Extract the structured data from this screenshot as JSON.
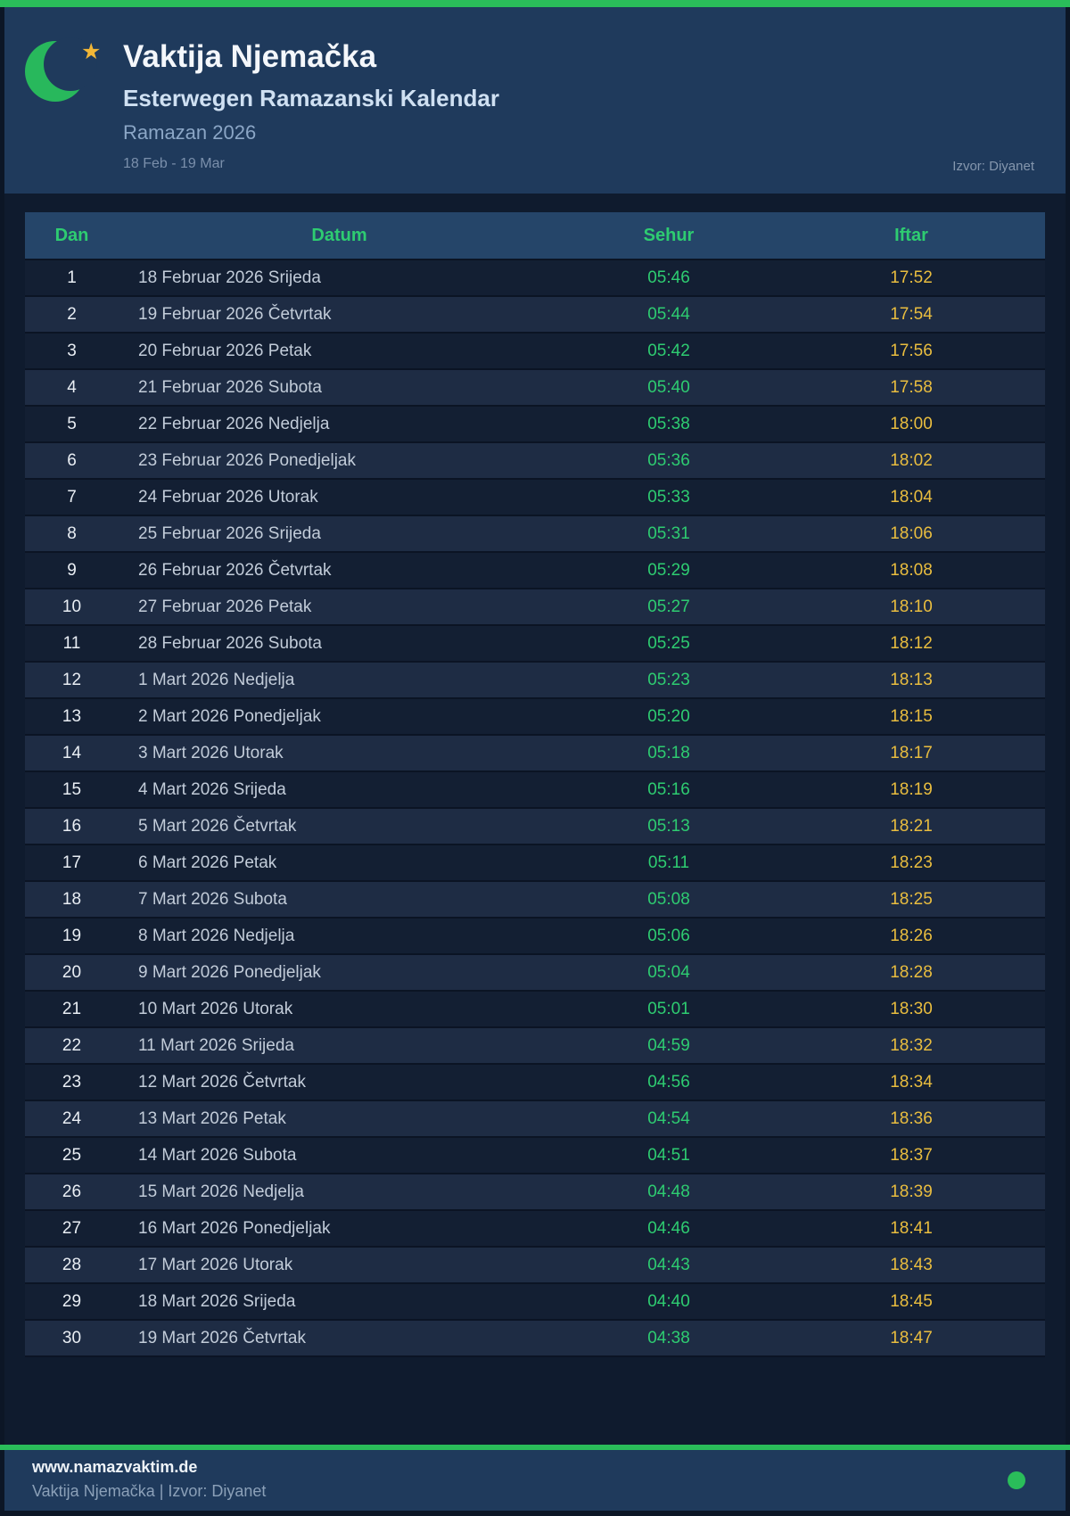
{
  "header": {
    "title": "Vaktija Njemačka",
    "subtitle": "Esterwegen Ramazanski Kalendar",
    "season": "Ramazan 2026",
    "date_range": "18 Feb - 19 Mar",
    "source": "Izvor: Diyanet",
    "star_glyph": "★"
  },
  "colors": {
    "accent_green": "#2abd5a",
    "header_bg": "#1f3a5c",
    "body_bg": "#0f1b2e",
    "table_header_bg": "#254569",
    "sehur_green": "#2ecc71",
    "iftar_amber": "#e9bd3f",
    "moon_green": "#28b85c",
    "star_gold": "#f2b636"
  },
  "table": {
    "columns": [
      "Dan",
      "Datum",
      "Sehur",
      "Iftar"
    ],
    "rows": [
      {
        "dan": "1",
        "datum": "18 Februar 2026 Srijeda",
        "sehur": "05:46",
        "iftar": "17:52"
      },
      {
        "dan": "2",
        "datum": "19 Februar 2026 Četvrtak",
        "sehur": "05:44",
        "iftar": "17:54"
      },
      {
        "dan": "3",
        "datum": "20 Februar 2026 Petak",
        "sehur": "05:42",
        "iftar": "17:56"
      },
      {
        "dan": "4",
        "datum": "21 Februar 2026 Subota",
        "sehur": "05:40",
        "iftar": "17:58"
      },
      {
        "dan": "5",
        "datum": "22 Februar 2026 Nedjelja",
        "sehur": "05:38",
        "iftar": "18:00"
      },
      {
        "dan": "6",
        "datum": "23 Februar 2026 Ponedjeljak",
        "sehur": "05:36",
        "iftar": "18:02"
      },
      {
        "dan": "7",
        "datum": "24 Februar 2026 Utorak",
        "sehur": "05:33",
        "iftar": "18:04"
      },
      {
        "dan": "8",
        "datum": "25 Februar 2026 Srijeda",
        "sehur": "05:31",
        "iftar": "18:06"
      },
      {
        "dan": "9",
        "datum": "26 Februar 2026 Četvrtak",
        "sehur": "05:29",
        "iftar": "18:08"
      },
      {
        "dan": "10",
        "datum": "27 Februar 2026 Petak",
        "sehur": "05:27",
        "iftar": "18:10"
      },
      {
        "dan": "11",
        "datum": "28 Februar 2026 Subota",
        "sehur": "05:25",
        "iftar": "18:12"
      },
      {
        "dan": "12",
        "datum": "1 Mart 2026 Nedjelja",
        "sehur": "05:23",
        "iftar": "18:13"
      },
      {
        "dan": "13",
        "datum": "2 Mart 2026 Ponedjeljak",
        "sehur": "05:20",
        "iftar": "18:15"
      },
      {
        "dan": "14",
        "datum": "3 Mart 2026 Utorak",
        "sehur": "05:18",
        "iftar": "18:17"
      },
      {
        "dan": "15",
        "datum": "4 Mart 2026 Srijeda",
        "sehur": "05:16",
        "iftar": "18:19"
      },
      {
        "dan": "16",
        "datum": "5 Mart 2026 Četvrtak",
        "sehur": "05:13",
        "iftar": "18:21"
      },
      {
        "dan": "17",
        "datum": "6 Mart 2026 Petak",
        "sehur": "05:11",
        "iftar": "18:23"
      },
      {
        "dan": "18",
        "datum": "7 Mart 2026 Subota",
        "sehur": "05:08",
        "iftar": "18:25"
      },
      {
        "dan": "19",
        "datum": "8 Mart 2026 Nedjelja",
        "sehur": "05:06",
        "iftar": "18:26"
      },
      {
        "dan": "20",
        "datum": "9 Mart 2026 Ponedjeljak",
        "sehur": "05:04",
        "iftar": "18:28"
      },
      {
        "dan": "21",
        "datum": "10 Mart 2026 Utorak",
        "sehur": "05:01",
        "iftar": "18:30"
      },
      {
        "dan": "22",
        "datum": "11 Mart 2026 Srijeda",
        "sehur": "04:59",
        "iftar": "18:32"
      },
      {
        "dan": "23",
        "datum": "12 Mart 2026 Četvrtak",
        "sehur": "04:56",
        "iftar": "18:34"
      },
      {
        "dan": "24",
        "datum": "13 Mart 2026 Petak",
        "sehur": "04:54",
        "iftar": "18:36"
      },
      {
        "dan": "25",
        "datum": "14 Mart 2026 Subota",
        "sehur": "04:51",
        "iftar": "18:37"
      },
      {
        "dan": "26",
        "datum": "15 Mart 2026 Nedjelja",
        "sehur": "04:48",
        "iftar": "18:39"
      },
      {
        "dan": "27",
        "datum": "16 Mart 2026 Ponedjeljak",
        "sehur": "04:46",
        "iftar": "18:41"
      },
      {
        "dan": "28",
        "datum": "17 Mart 2026 Utorak",
        "sehur": "04:43",
        "iftar": "18:43"
      },
      {
        "dan": "29",
        "datum": "18 Mart 2026 Srijeda",
        "sehur": "04:40",
        "iftar": "18:45"
      },
      {
        "dan": "30",
        "datum": "19 Mart 2026 Četvrtak",
        "sehur": "04:38",
        "iftar": "18:47"
      }
    ]
  },
  "footer": {
    "website": "www.namazvaktim.de",
    "credit": "Vaktija Njemačka | Izvor: Diyanet"
  }
}
